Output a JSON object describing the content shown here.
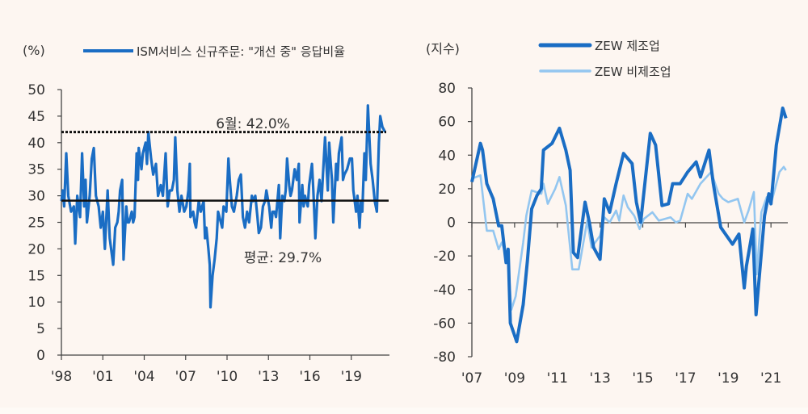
{
  "colors": {
    "background": "#fdf6f1",
    "ism": "#1a6dc4",
    "zew_manufacturing": "#1a6dc4",
    "zew_non_manufacturing": "#93c6f0",
    "reference_lines": "#111111"
  },
  "chart_data": [
    {
      "type": "line",
      "unit_label": "(%)",
      "ylim": [
        0,
        50
      ],
      "yticks": [
        0,
        5,
        10,
        15,
        20,
        25,
        30,
        35,
        40,
        45,
        50
      ],
      "xlim": [
        1998,
        2022
      ],
      "xticks": [
        1998,
        2001,
        2004,
        2007,
        2010,
        2013,
        2016,
        2019
      ],
      "xtick_labels": [
        "'98",
        "'01",
        "'04",
        "'07",
        "'10",
        "'13",
        "'16",
        "'19"
      ],
      "grid": false,
      "legend_position": "top",
      "series": [
        {
          "name": "ISM서비스 신규주문: \"개선 중\" 응답비율",
          "x": [
            1998.0,
            1998.1,
            1998.2,
            1998.35,
            1998.5,
            1998.7,
            1998.9,
            1999.0,
            1999.15,
            1999.35,
            1999.5,
            1999.65,
            1999.75,
            1999.85,
            2000.05,
            2000.2,
            2000.35,
            2000.5,
            2000.7,
            2000.85,
            2001.0,
            2001.15,
            2001.35,
            2001.5,
            2001.75,
            2001.9,
            2002.05,
            2002.15,
            2002.25,
            2002.4,
            2002.5,
            2002.7,
            2002.8,
            2002.9,
            2003.1,
            2003.2,
            2003.3,
            2003.45,
            2003.55,
            2003.6,
            2003.8,
            2003.9,
            2004.1,
            2004.2,
            2004.3,
            2004.5,
            2004.65,
            2004.85,
            2005.0,
            2005.2,
            2005.35,
            2005.55,
            2005.7,
            2005.85,
            2006.0,
            2006.15,
            2006.25,
            2006.4,
            2006.55,
            2006.7,
            2006.9,
            2007.05,
            2007.2,
            2007.3,
            2007.35,
            2007.55,
            2007.65,
            2007.75,
            2007.95,
            2008.1,
            2008.3,
            2008.4,
            2008.5,
            2008.65,
            2008.75,
            2008.8,
            2008.95,
            2009.1,
            2009.25,
            2009.35,
            2009.45,
            2009.65,
            2009.75,
            2009.95,
            2010.1,
            2010.2,
            2010.35,
            2010.5,
            2010.7,
            2010.85,
            2011.0,
            2011.15,
            2011.3,
            2011.45,
            2011.6,
            2011.8,
            2011.9,
            2012.05,
            2012.2,
            2012.3,
            2012.45,
            2012.6,
            2012.75,
            2012.85,
            2013.05,
            2013.2,
            2013.3,
            2013.45,
            2013.55,
            2013.75,
            2013.85,
            2014.0,
            2014.15,
            2014.25,
            2014.35,
            2014.5,
            2014.6,
            2014.7,
            2014.9,
            2015.05,
            2015.2,
            2015.25,
            2015.45,
            2015.55,
            2015.65,
            2015.85,
            2015.95,
            2016.15,
            2016.25,
            2016.4,
            2016.55,
            2016.7,
            2016.85,
            2016.95,
            2017.1,
            2017.3,
            2017.4,
            2017.6,
            2017.7,
            2017.9,
            2018.0,
            2018.1,
            2018.3,
            2018.4,
            2018.5,
            2018.7,
            2018.9,
            2019.05,
            2019.15,
            2019.35,
            2019.45,
            2019.6,
            2019.7,
            2019.8,
            2019.95,
            2020.05,
            2020.2,
            2020.4,
            2020.55,
            2020.7,
            2020.85,
            2021.0,
            2021.1,
            2021.25,
            2021.45
          ],
          "y": [
            29,
            31,
            28,
            38,
            30,
            27,
            28,
            21,
            30,
            26,
            38,
            28,
            33,
            25,
            30,
            37,
            39,
            30,
            28,
            24,
            27,
            20,
            31,
            22,
            17,
            24,
            25,
            27,
            31,
            33,
            18,
            28,
            25,
            25,
            27,
            25,
            26,
            38,
            33,
            39,
            35,
            38,
            40,
            36,
            42,
            37,
            34,
            36,
            30,
            32,
            30,
            38,
            28,
            31,
            31,
            33,
            41,
            31,
            27,
            30,
            27,
            28,
            31,
            36,
            26,
            27,
            25,
            24,
            29,
            27,
            29,
            22,
            24,
            20,
            17,
            9,
            15,
            18,
            22,
            27,
            26,
            24,
            28,
            27,
            37,
            33,
            28,
            27,
            30,
            33,
            34,
            26,
            24,
            27,
            25,
            30,
            29,
            30,
            26,
            23,
            24,
            28,
            29,
            31,
            28,
            24,
            27,
            27,
            26,
            32,
            22,
            30,
            29,
            31,
            37,
            32,
            30,
            31,
            35,
            33,
            36,
            25,
            32,
            28,
            30,
            28,
            32,
            36,
            31,
            22,
            30,
            33,
            29,
            34,
            41,
            31,
            40,
            33,
            25,
            36,
            33,
            38,
            41,
            33,
            34,
            35,
            37,
            37,
            31,
            27,
            30,
            24,
            29,
            27,
            38,
            33,
            47,
            36,
            33,
            29,
            27,
            40,
            45,
            43,
            42
          ]
        }
      ],
      "annotations": [
        {
          "label": "6월: 42.0%",
          "value": 42.0,
          "style": "dotted"
        },
        {
          "label": "평균: 29.7%",
          "value": 29.7,
          "style": "solid"
        }
      ]
    },
    {
      "type": "line",
      "unit_label": "(지수)",
      "ylim": [
        -80,
        80
      ],
      "yticks": [
        -80,
        -60,
        -40,
        -20,
        0,
        20,
        40,
        60,
        80
      ],
      "xlim": [
        2007,
        2021.75
      ],
      "xticks": [
        2007,
        2009,
        2011,
        2013,
        2015,
        2017,
        2019,
        2021
      ],
      "xtick_labels": [
        "'07",
        "'09",
        "'11",
        "'13",
        "'15",
        "'17",
        "'19",
        "'21"
      ],
      "grid": false,
      "legend_position": "top",
      "series": [
        {
          "name": "ZEW 제조업",
          "x": [
            2007.0,
            2007.4,
            2007.5,
            2007.7,
            2008.0,
            2008.25,
            2008.4,
            2008.6,
            2008.7,
            2008.8,
            2009.1,
            2009.4,
            2009.6,
            2009.8,
            2010.05,
            2010.25,
            2010.35,
            2010.75,
            2011.1,
            2011.4,
            2011.6,
            2011.75,
            2011.95,
            2012.3,
            2012.5,
            2012.7,
            2013.0,
            2013.2,
            2013.45,
            2013.75,
            2014.1,
            2014.5,
            2014.7,
            2014.9,
            2015.35,
            2015.6,
            2015.9,
            2016.2,
            2016.4,
            2016.75,
            2017.1,
            2017.5,
            2017.7,
            2018.1,
            2018.3,
            2018.65,
            2019.2,
            2019.5,
            2019.75,
            2019.85,
            2020.15,
            2020.3,
            2020.7,
            2020.9,
            2021.0,
            2021.25,
            2021.55,
            2021.7
          ],
          "y": [
            24,
            47,
            43,
            23,
            14,
            -2,
            -2,
            -24,
            -16,
            -60,
            -71,
            -49,
            -23,
            8,
            16,
            20,
            43,
            47,
            56,
            43,
            31,
            -18,
            -21,
            12,
            0,
            -15,
            -22,
            14,
            6,
            23,
            41,
            35,
            12,
            0,
            53,
            46,
            10,
            11,
            23,
            23,
            30,
            36,
            27,
            43,
            23,
            -3,
            -13,
            -7,
            -39,
            -26,
            -4,
            -55,
            4,
            17,
            11,
            46,
            68,
            62
          ]
        },
        {
          "name": "ZEW 비제조업",
          "x": [
            2007.0,
            2007.4,
            2007.7,
            2008.0,
            2008.25,
            2008.4,
            2008.7,
            2008.85,
            2009.05,
            2009.4,
            2009.55,
            2009.8,
            2010.25,
            2010.35,
            2010.55,
            2010.9,
            2011.1,
            2011.4,
            2011.7,
            2012.0,
            2012.4,
            2012.6,
            2013.0,
            2013.2,
            2013.45,
            2013.75,
            2013.9,
            2014.1,
            2014.3,
            2014.6,
            2014.85,
            2015.05,
            2015.45,
            2015.75,
            2016.3,
            2016.55,
            2016.75,
            2017.1,
            2017.3,
            2017.7,
            2018.2,
            2018.55,
            2018.75,
            2019.0,
            2019.45,
            2019.75,
            2019.95,
            2020.2,
            2020.33,
            2020.55,
            2020.8,
            2021.0,
            2021.4,
            2021.6,
            2021.7
          ],
          "y": [
            26,
            28,
            -5,
            -5,
            -16,
            -12,
            -23,
            -52,
            -44,
            -12,
            4,
            19,
            17,
            23,
            11,
            20,
            27,
            10,
            -28,
            -28,
            1,
            -15,
            -8,
            3,
            0,
            7,
            1,
            16,
            9,
            4,
            -4,
            2,
            6,
            1,
            3,
            0,
            1,
            17,
            14,
            23,
            30,
            17,
            14,
            12,
            14,
            0,
            7,
            18,
            -31,
            6,
            15,
            11,
            30,
            33,
            31
          ]
        }
      ]
    }
  ]
}
